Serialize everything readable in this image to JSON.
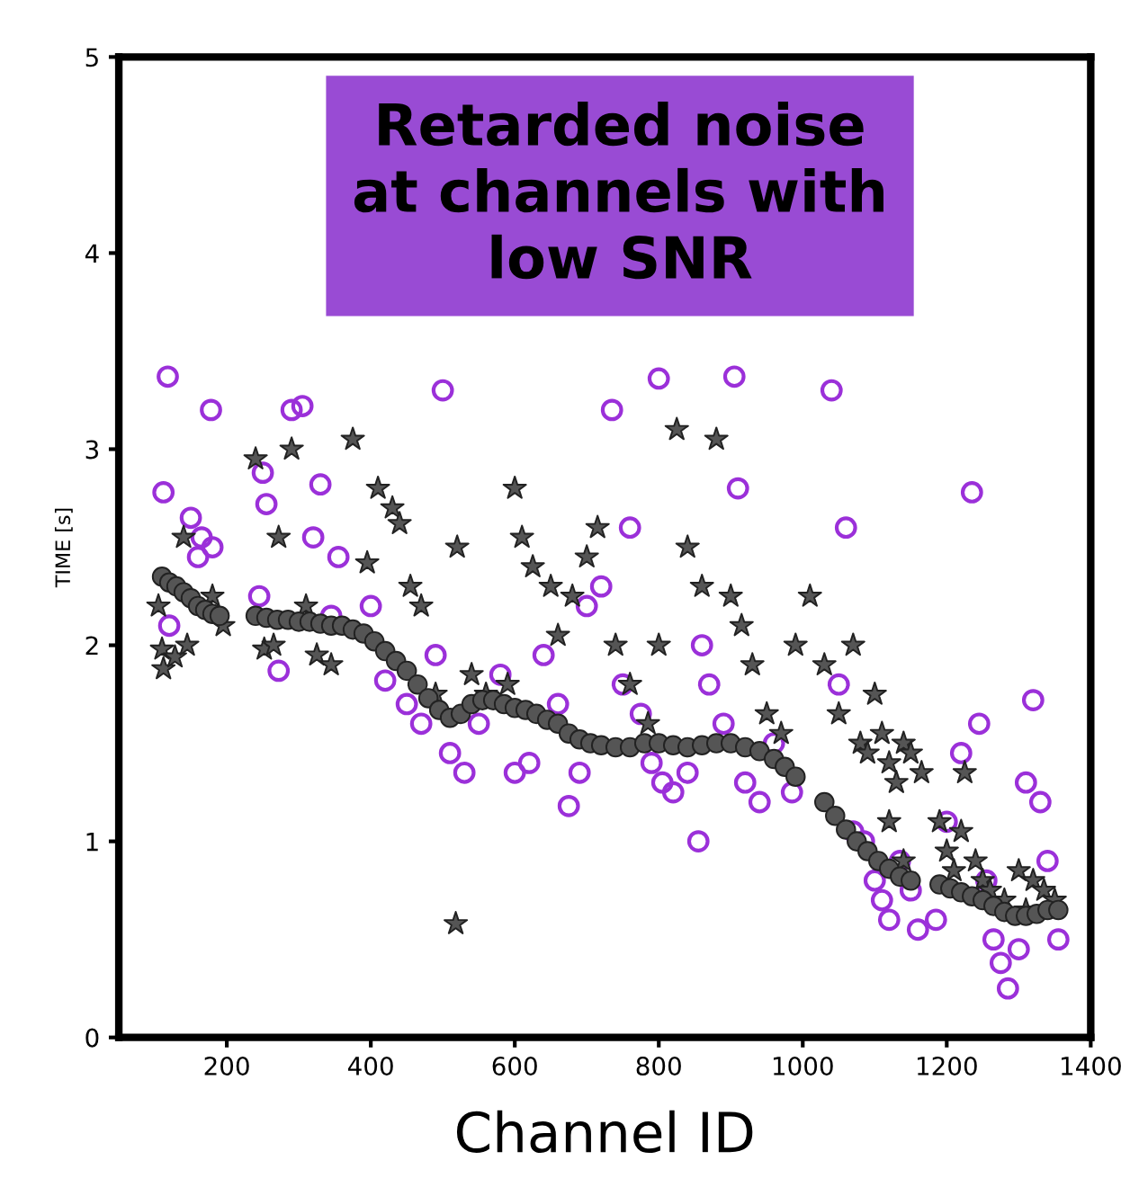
{
  "chart_data": {
    "type": "scatter",
    "xlabel": "Channel ID",
    "ylabel": "TIME [s]",
    "annotations": [
      "Retarded noise\nat channels with\nlow SNR"
    ],
    "xlim": [
      50,
      1400
    ],
    "xticks": [
      200,
      400,
      600,
      800,
      1000,
      1200,
      1400
    ],
    "ylim": [
      0,
      5
    ],
    "yticks": [
      0,
      1,
      2,
      3,
      4,
      5
    ],
    "grid": false,
    "legend": false,
    "series": [
      {
        "marker": "circle",
        "color": "#9b30d9",
        "x": [
          112,
          118,
          178,
          150,
          165,
          180,
          160,
          120,
          245,
          255,
          272,
          290,
          305,
          250,
          320,
          330,
          355,
          345,
          400,
          420,
          450,
          470,
          490,
          500,
          510,
          530,
          550,
          580,
          600,
          620,
          640,
          660,
          675,
          690,
          700,
          720,
          735,
          750,
          760,
          775,
          790,
          805,
          820,
          840,
          855,
          870,
          890,
          905,
          920,
          940,
          960,
          985,
          1040,
          1060,
          1050,
          1070,
          1085,
          1100,
          1110,
          1120,
          1135,
          1150,
          1160,
          1185,
          1200,
          1220,
          1235,
          1245,
          1255,
          1265,
          1275,
          1285,
          1300,
          1310,
          1320,
          1330,
          1340,
          1355,
          800,
          860,
          910
        ],
        "values": [
          2.78,
          3.37,
          3.2,
          2.65,
          2.55,
          2.5,
          2.45,
          2.1,
          2.25,
          2.72,
          1.87,
          3.2,
          3.22,
          2.88,
          2.55,
          2.82,
          2.45,
          2.15,
          2.2,
          1.82,
          1.7,
          1.6,
          1.95,
          3.3,
          1.45,
          1.35,
          1.6,
          1.85,
          1.35,
          1.4,
          1.95,
          1.7,
          1.18,
          1.35,
          2.2,
          2.3,
          3.2,
          1.8,
          2.6,
          1.65,
          1.4,
          1.3,
          1.25,
          1.35,
          1.0,
          1.8,
          1.6,
          3.37,
          1.3,
          1.2,
          1.5,
          1.25,
          3.3,
          2.6,
          1.8,
          1.05,
          1.0,
          0.8,
          0.7,
          0.6,
          0.9,
          0.75,
          0.55,
          0.6,
          1.1,
          1.45,
          2.78,
          1.6,
          0.8,
          0.5,
          0.38,
          0.25,
          0.45,
          1.3,
          1.72,
          1.2,
          0.9,
          0.5,
          3.36,
          2.0,
          2.8
        ]
      },
      {
        "marker": "star",
        "color": "#555555",
        "x": [
          105,
          110,
          112,
          128,
          140,
          145,
          180,
          195,
          240,
          252,
          265,
          272,
          290,
          310,
          325,
          345,
          375,
          395,
          410,
          430,
          440,
          455,
          470,
          490,
          520,
          518,
          540,
          560,
          590,
          600,
          610,
          625,
          650,
          660,
          680,
          700,
          715,
          740,
          760,
          785,
          800,
          825,
          840,
          860,
          880,
          900,
          915,
          930,
          950,
          970,
          990,
          1010,
          1030,
          1050,
          1070,
          1080,
          1090,
          1100,
          1110,
          1120,
          1130,
          1140,
          1150,
          1165,
          1120,
          1140,
          1190,
          1200,
          1210,
          1220,
          1225,
          1240,
          1250,
          1260,
          1280,
          1300,
          1320,
          1335,
          1350,
          1310
        ],
        "values": [
          2.2,
          1.98,
          1.88,
          1.94,
          2.55,
          2.0,
          2.25,
          2.1,
          2.95,
          1.98,
          2.0,
          2.55,
          3.0,
          2.2,
          1.95,
          1.9,
          3.05,
          2.42,
          2.8,
          2.7,
          2.62,
          2.3,
          2.2,
          1.75,
          2.5,
          0.58,
          1.85,
          1.75,
          1.8,
          2.8,
          2.55,
          2.4,
          2.3,
          2.05,
          2.25,
          2.45,
          2.6,
          2.0,
          1.8,
          1.6,
          2.0,
          3.1,
          2.5,
          2.3,
          3.05,
          2.25,
          2.1,
          1.9,
          1.65,
          1.55,
          2.0,
          2.25,
          1.9,
          1.65,
          2.0,
          1.5,
          1.45,
          1.75,
          1.55,
          1.4,
          1.3,
          1.5,
          1.45,
          1.35,
          1.1,
          0.9,
          1.1,
          0.95,
          0.85,
          1.05,
          1.35,
          0.9,
          0.8,
          0.75,
          0.7,
          0.85,
          0.8,
          0.75,
          0.7,
          0.65
        ]
      },
      {
        "marker": "circle",
        "color": "#555555",
        "x": [
          110,
          120,
          130,
          140,
          150,
          160,
          170,
          180,
          190,
          240,
          255,
          270,
          285,
          300,
          315,
          330,
          345,
          360,
          375,
          390,
          405,
          420,
          435,
          450,
          465,
          480,
          495,
          510,
          525,
          540,
          555,
          570,
          585,
          600,
          615,
          630,
          645,
          660,
          675,
          690,
          705,
          720,
          740,
          760,
          780,
          800,
          820,
          840,
          860,
          880,
          900,
          920,
          940,
          960,
          975,
          990,
          1030,
          1045,
          1060,
          1075,
          1090,
          1105,
          1120,
          1135,
          1150,
          1190,
          1205,
          1220,
          1235,
          1250,
          1265,
          1280,
          1295,
          1310,
          1325,
          1340,
          1355
        ],
        "values": [
          2.35,
          2.32,
          2.3,
          2.27,
          2.24,
          2.2,
          2.18,
          2.16,
          2.15,
          2.15,
          2.14,
          2.13,
          2.13,
          2.12,
          2.12,
          2.11,
          2.1,
          2.1,
          2.08,
          2.06,
          2.02,
          1.97,
          1.92,
          1.87,
          1.8,
          1.73,
          1.67,
          1.63,
          1.65,
          1.7,
          1.72,
          1.72,
          1.7,
          1.68,
          1.67,
          1.65,
          1.62,
          1.6,
          1.55,
          1.52,
          1.5,
          1.49,
          1.48,
          1.48,
          1.5,
          1.5,
          1.49,
          1.48,
          1.49,
          1.5,
          1.5,
          1.48,
          1.46,
          1.42,
          1.38,
          1.33,
          1.2,
          1.13,
          1.06,
          1.0,
          0.95,
          0.9,
          0.86,
          0.82,
          0.8,
          0.78,
          0.76,
          0.74,
          0.72,
          0.7,
          0.67,
          0.64,
          0.62,
          0.62,
          0.63,
          0.65,
          0.65
        ]
      }
    ]
  }
}
